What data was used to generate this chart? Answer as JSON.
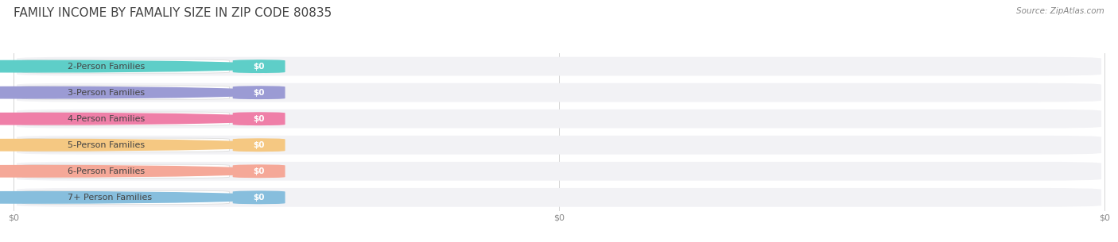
{
  "title": "FAMILY INCOME BY FAMALIY SIZE IN ZIP CODE 80835",
  "source": "Source: ZipAtlas.com",
  "categories": [
    "2-Person Families",
    "3-Person Families",
    "4-Person Families",
    "5-Person Families",
    "6-Person Families",
    "7+ Person Families"
  ],
  "values": [
    0,
    0,
    0,
    0,
    0,
    0
  ],
  "bar_colors": [
    "#5ECEC8",
    "#9B9BD4",
    "#EF7FA8",
    "#F5C882",
    "#F5A898",
    "#87BEDD"
  ],
  "xlim": [
    0,
    1
  ],
  "x_tick_positions": [
    0,
    0.5,
    1.0
  ],
  "x_tick_labels": [
    "$0",
    "$0",
    "$0"
  ],
  "title_fontsize": 11,
  "label_fontsize": 8,
  "tick_fontsize": 8,
  "source_fontsize": 7.5,
  "background_color": "#FFFFFF",
  "title_color": "#444444",
  "label_text_color": "#444444",
  "value_label_color": "#FFFFFF",
  "source_color": "#888888",
  "row_bg_color": "#F2F2F5",
  "label_pill_color": "#FFFFFF",
  "grid_color": "#CCCCCC"
}
